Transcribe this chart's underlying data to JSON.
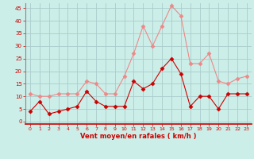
{
  "x": [
    0,
    1,
    2,
    3,
    4,
    5,
    6,
    7,
    8,
    9,
    10,
    11,
    12,
    13,
    14,
    15,
    16,
    17,
    18,
    19,
    20,
    21,
    22,
    23
  ],
  "wind_avg": [
    4,
    8,
    3,
    4,
    5,
    6,
    12,
    8,
    6,
    6,
    6,
    16,
    13,
    15,
    21,
    25,
    19,
    6,
    10,
    10,
    5,
    11,
    11,
    11
  ],
  "wind_gust": [
    11,
    10,
    10,
    11,
    11,
    11,
    16,
    15,
    11,
    11,
    18,
    27,
    38,
    30,
    38,
    46,
    42,
    23,
    23,
    27,
    16,
    15,
    17,
    18
  ],
  "bg_color": "#cceee8",
  "grid_color": "#aacccc",
  "line_avg_color": "#cc0000",
  "line_gust_color": "#ee8888",
  "xlabel": "Vent moyen/en rafales ( km/h )",
  "xlabel_color": "#cc0000",
  "ytick_labels": [
    "0",
    "5",
    "10",
    "15",
    "20",
    "25",
    "30",
    "35",
    "40",
    "45"
  ],
  "ytick_vals": [
    0,
    5,
    10,
    15,
    20,
    25,
    30,
    35,
    40,
    45
  ],
  "xtick_vals": [
    0,
    1,
    2,
    3,
    4,
    5,
    6,
    7,
    8,
    9,
    10,
    11,
    12,
    13,
    14,
    15,
    16,
    17,
    18,
    19,
    20,
    21,
    22,
    23
  ],
  "ylim": [
    -1,
    47
  ],
  "xlim": [
    -0.5,
    23.5
  ],
  "marker": "D",
  "markersize": 2.5
}
